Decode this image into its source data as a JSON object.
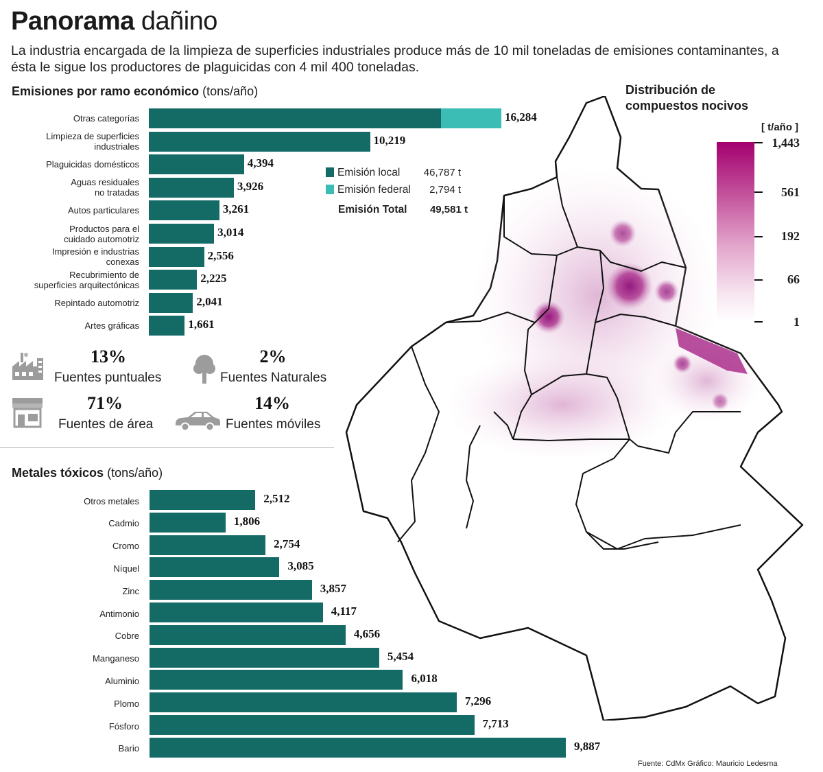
{
  "title": {
    "bold": "Panorama",
    "normal": "dañino"
  },
  "subtitle": "La industria encargada de la limpieza de superficies industriales produce más de 10 mil toneladas de emisiones contaminantes, a ésta le sigue los productores de plaguicidas con 4 mil 400 toneladas.",
  "emissions_section": {
    "title_bold": "Emisiones por ramo económico",
    "unit": "(tons/año)"
  },
  "legend": {
    "local_label": "Emisión local",
    "local_value": "46,787 t",
    "federal_label": "Emisión federal",
    "federal_value": "2,794 t",
    "total_label": "Emisión Total",
    "total_value": "49,581 t"
  },
  "sources": [
    {
      "pct": "13%",
      "label": "Fuentes puntuales",
      "icon": "factory-icon"
    },
    {
      "pct": "2%",
      "label": "Fuentes Naturales",
      "icon": "tree-icon"
    },
    {
      "pct": "71%",
      "label": "Fuentes de área",
      "icon": "storefront-icon"
    },
    {
      "pct": "14%",
      "label": "Fuentes móviles",
      "icon": "car-icon"
    }
  ],
  "metals_section": {
    "title_bold": "Metales tóxicos",
    "unit": "(tons/año)"
  },
  "map_legend": {
    "title_line1": "Distribución de",
    "title_line2": "compuestos nocivos",
    "unit": "[ t/año ]",
    "ticks": [
      "1,443",
      "561",
      "192",
      "66",
      "1"
    ]
  },
  "source_note": "Fuente: CdMx  Gráfico: Mauricio Ledesma",
  "colors": {
    "local": "#146b66",
    "federal": "#3bbcb5",
    "scale_high": "#a3006f",
    "map_hotspot": "#a0157d"
  },
  "chart_data": [
    {
      "type": "bar",
      "orientation": "horizontal",
      "title": "Emisiones por ramo económico (tons/año)",
      "categories": [
        "Otras categorías",
        "Limpieza de superficies\nindustriales",
        "Plaguicidas domésticos",
        "Aguas residuales\nno tratadas",
        "Autos particulares",
        "Productos para el\ncuidado automotriz",
        "Impresión e industrias\nconexas",
        "Recubrimiento de\nsuperficies arquitectónicas",
        "Repintado automotriz",
        "Artes gráficas"
      ],
      "series": [
        {
          "name": "Emisión local",
          "values": [
            13490,
            10219,
            4394,
            3926,
            3261,
            3014,
            2556,
            2225,
            2041,
            1661
          ]
        },
        {
          "name": "Emisión federal",
          "values": [
            2794,
            0,
            0,
            0,
            0,
            0,
            0,
            0,
            0,
            0
          ]
        }
      ],
      "labels": [
        "16,284",
        "10,219",
        "4,394",
        "3,926",
        "3,261",
        "3,014",
        "2,556",
        "2,225",
        "2,041",
        "1,661"
      ],
      "xlim": [
        0,
        16284
      ]
    },
    {
      "type": "bar",
      "orientation": "horizontal",
      "title": "Metales tóxicos (tons/año)",
      "categories": [
        "Otros metales",
        "Cadmio",
        "Cromo",
        "Níquel",
        "Zinc",
        "Antimonio",
        "Cobre",
        "Manganeso",
        "Aluminio",
        "Plomo",
        "Fósforo",
        "Bario"
      ],
      "values": [
        2512,
        1806,
        2754,
        3085,
        3857,
        4117,
        4656,
        5454,
        6018,
        7296,
        7713,
        9887
      ],
      "labels": [
        "2,512",
        "1,806",
        "2,754",
        "3,085",
        "3,857",
        "4,117",
        "4,656",
        "5,454",
        "6,018",
        "7,296",
        "7,713",
        "9,887"
      ],
      "xlim": [
        0,
        9887
      ]
    }
  ]
}
